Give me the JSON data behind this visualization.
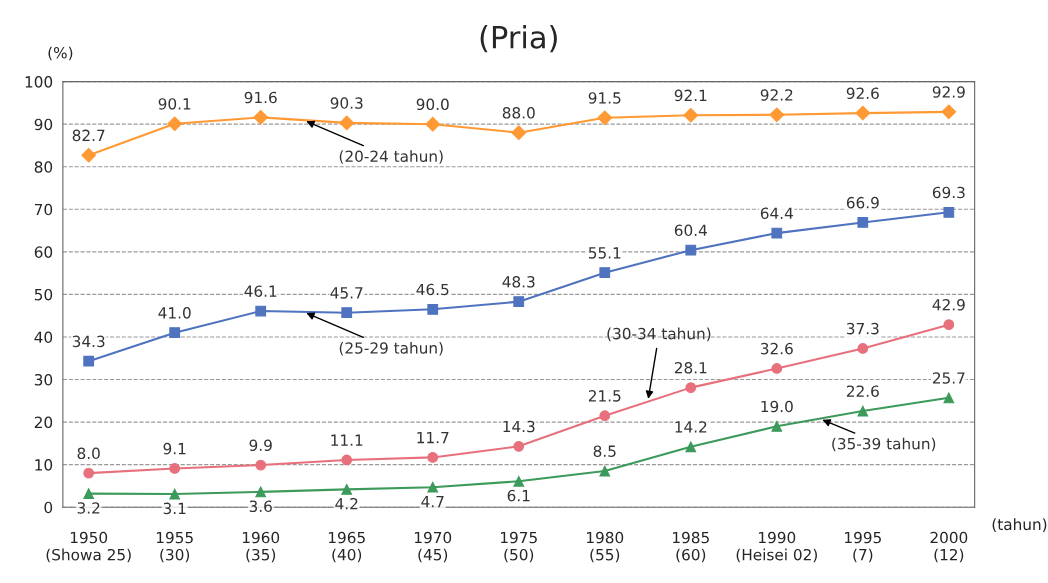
{
  "chart_data": {
    "type": "line",
    "title": "(Pria)",
    "ylabel": "(%)",
    "xlabel": "(tahun)",
    "categories": [
      "1950\n(Showa 25)",
      "1955\n(30)",
      "1960\n(35)",
      "1965\n(40)",
      "1970\n(45)",
      "1975\n(50)",
      "1980\n(55)",
      "1985\n(60)",
      "1990\n(Heisei 02)",
      "1995\n(7)",
      "2000\n(12)"
    ],
    "series": [
      {
        "name": "(20-24 tahun)",
        "color": "#ff9933",
        "marker": "diamond",
        "values": [
          82.7,
          90.1,
          91.6,
          90.3,
          90.0,
          88.0,
          91.5,
          92.1,
          92.2,
          92.6,
          92.9
        ],
        "value_labels": [
          "82.7",
          "90.1",
          "91.6",
          "90.3",
          "90.0",
          "88.0",
          "91.5",
          "92.1",
          "92.2",
          "92.6",
          "92.9"
        ]
      },
      {
        "name": "(25-29 tahun)",
        "color": "#4f73be",
        "marker": "square",
        "values": [
          34.3,
          41.0,
          46.1,
          45.7,
          46.5,
          48.3,
          55.1,
          60.4,
          64.4,
          66.9,
          69.3
        ],
        "value_labels": [
          "34.3",
          "41.0",
          "46.1",
          "45.7",
          "46.5",
          "48.3",
          "55.1",
          "60.4",
          "64.4",
          "66.9",
          "69.3"
        ]
      },
      {
        "name": "(30-34 tahun)",
        "color": "#e8707c",
        "marker": "circle",
        "values": [
          8.0,
          9.1,
          9.9,
          11.1,
          11.7,
          14.3,
          21.5,
          28.1,
          32.6,
          37.3,
          42.9
        ],
        "value_labels": [
          "8.0",
          "9.1",
          "9.9",
          "11.1",
          "11.7",
          "14.3",
          "21.5",
          "28.1",
          "32.6",
          "37.3",
          "42.9"
        ]
      },
      {
        "name": "(35-39 tahun)",
        "color": "#3c9a5a",
        "marker": "triangle",
        "values": [
          3.2,
          3.1,
          3.6,
          4.2,
          4.7,
          6.1,
          8.5,
          14.2,
          19.0,
          22.6,
          25.7
        ],
        "value_labels": [
          "3.2",
          "3.1",
          "3.6",
          "4.2",
          "4.7",
          "6.1",
          "8.5",
          "14.2",
          "19.0",
          "22.6",
          "25.7"
        ]
      }
    ],
    "ylim": [
      0,
      100
    ],
    "yticks": [
      0,
      10,
      20,
      30,
      40,
      50,
      60,
      70,
      80,
      90,
      100
    ],
    "grid": "y",
    "legend": false
  }
}
